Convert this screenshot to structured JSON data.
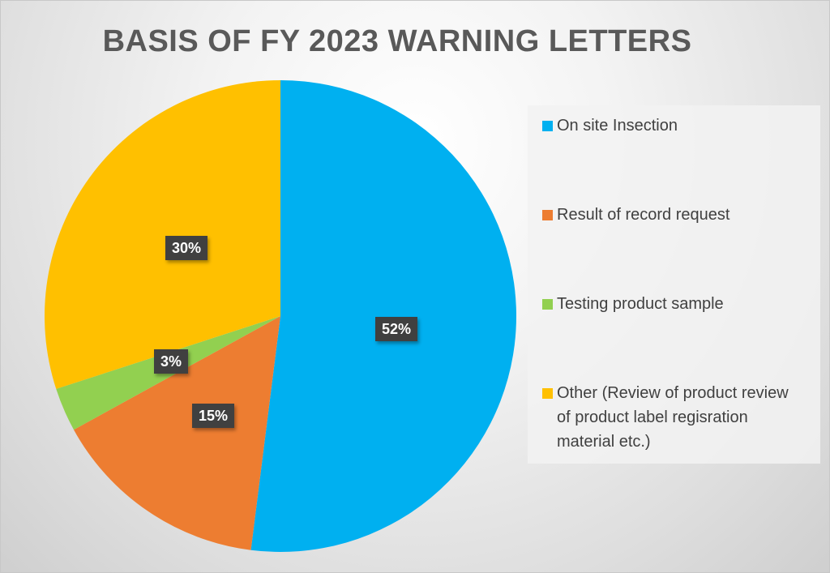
{
  "chart_data": {
    "type": "pie",
    "title": "BASIS OF FY 2023 WARNING LETTERS",
    "categories": [
      "On site Insection",
      "Result of record request",
      "Testing product sample",
      "Other (Review of product review of product label regisration material etc.)"
    ],
    "values": [
      52,
      15,
      3,
      30
    ],
    "unit": "%",
    "colors": [
      "#00B0F0",
      "#ED7D31",
      "#92D050",
      "#FFC000"
    ],
    "data_labels": [
      "52%",
      "15%",
      "3%",
      "30%"
    ],
    "legend_position": "right",
    "start_angle": "12 o'clock, clockwise"
  },
  "title": "BASIS OF FY 2023 WARNING LETTERS",
  "labels": {
    "blue": "52%",
    "orange": "15%",
    "green": "3%",
    "yellow": "30%"
  },
  "legend": {
    "items": [
      {
        "label": "On site Insection",
        "color": "#00B0F0"
      },
      {
        "label": "Result of record request",
        "color": "#ED7D31"
      },
      {
        "label": "Testing product sample",
        "color": "#92D050"
      },
      {
        "label": "Other (Review of product review of product label regisration material etc.)",
        "color": "#FFC000"
      }
    ]
  }
}
